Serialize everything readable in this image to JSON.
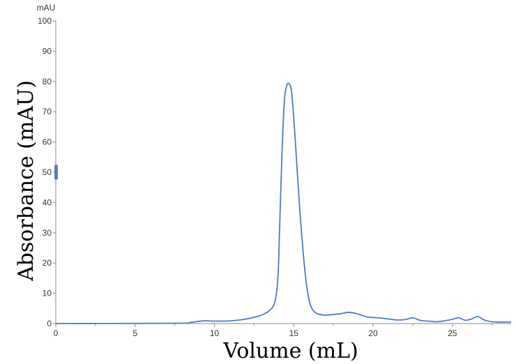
{
  "chart_data": {
    "type": "line",
    "title": "",
    "xlabel": "Volume (mL)",
    "ylabel": "Absorbance (mAU)",
    "y_unit_label": "mAU",
    "xlim": [
      0,
      28.7
    ],
    "ylim": [
      0,
      100
    ],
    "x_ticks": [
      0,
      5,
      10,
      15,
      20,
      25
    ],
    "y_ticks": [
      0,
      10,
      20,
      30,
      40,
      50,
      60,
      70,
      80,
      90,
      100
    ],
    "grid": false,
    "legend": "none",
    "line_color": "#4a7cc7",
    "series": [
      {
        "x": [
          0,
          7.5,
          8.5,
          9.3,
          10.0,
          11.0,
          12.0,
          12.8,
          13.4,
          13.8,
          14.0,
          14.1,
          14.25,
          14.4,
          14.55,
          14.7,
          14.85,
          15.0,
          15.2,
          15.4,
          15.6,
          15.8,
          16.0,
          16.2,
          16.5,
          17.0,
          17.5,
          18.0,
          18.4,
          18.8,
          19.2,
          19.6,
          20.0,
          20.5,
          21.0,
          21.5,
          22.0,
          22.5,
          23.0,
          23.5,
          24.0,
          24.5,
          25.0,
          25.4,
          25.8,
          26.2,
          26.6,
          27.0,
          27.5,
          28.0,
          28.7
        ],
        "y": [
          0,
          0.1,
          0.4,
          0.9,
          0.8,
          0.9,
          1.5,
          2.5,
          4.0,
          7.0,
          15.0,
          30.0,
          55.0,
          73.0,
          78.5,
          79.3,
          77.0,
          68.0,
          52.0,
          36.0,
          23.0,
          13.0,
          7.0,
          4.5,
          3.2,
          2.8,
          3.0,
          3.3,
          3.7,
          3.5,
          2.9,
          2.2,
          2.0,
          1.8,
          1.5,
          1.2,
          1.3,
          1.9,
          1.0,
          0.8,
          0.6,
          0.9,
          1.4,
          1.9,
          1.1,
          1.5,
          2.3,
          1.2,
          0.6,
          0.5,
          0.5
        ]
      }
    ]
  }
}
